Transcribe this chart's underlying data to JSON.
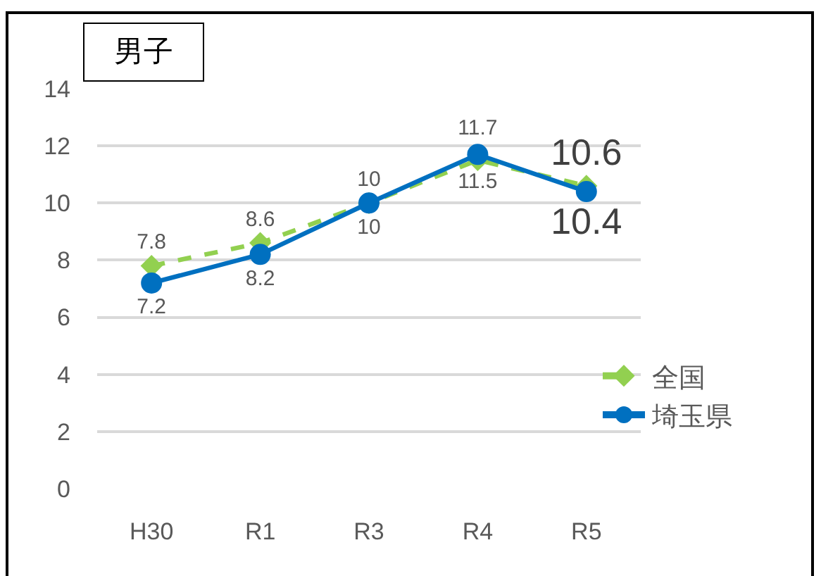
{
  "chart_data": {
    "type": "line",
    "title": "男子",
    "categories": [
      "H30",
      "R1",
      "R3",
      "R4",
      "R5"
    ],
    "series": [
      {
        "name": "全国",
        "color": "#92d050",
        "values": [
          7.8,
          8.6,
          10,
          11.5,
          10.6
        ],
        "marker": "diamond",
        "line_style": "dashed"
      },
      {
        "name": "埼玉県",
        "color": "#0070c0",
        "values": [
          7.2,
          8.2,
          10,
          11.7,
          10.4
        ],
        "marker": "circle",
        "line_style": "solid"
      }
    ],
    "ylim": [
      0,
      14
    ],
    "yticks": [
      0,
      2,
      4,
      6,
      8,
      10,
      12,
      14
    ],
    "grid": "y",
    "legend": "bottom right",
    "data_labels": true
  }
}
